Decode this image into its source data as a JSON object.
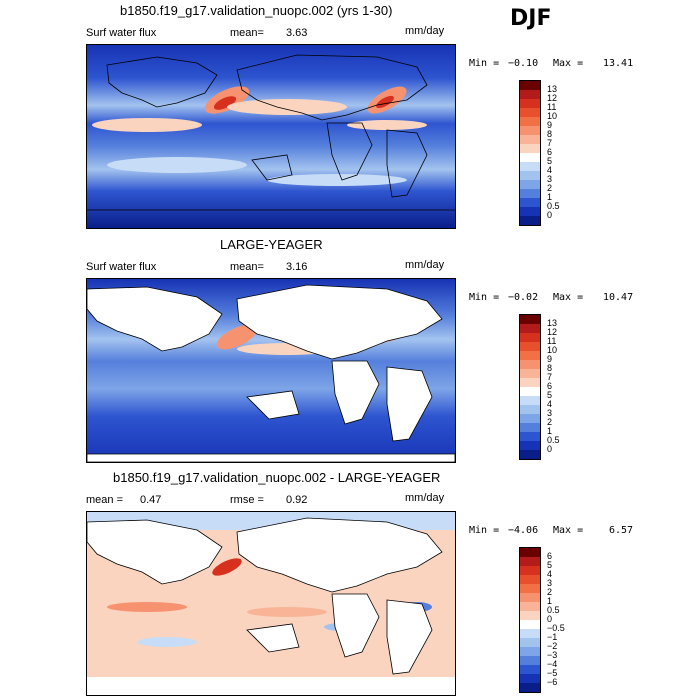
{
  "season": "DJF",
  "panels": [
    {
      "title": "b1850.f19_g17.validation_nuopc.002 (yrs 1-30)",
      "left_label": "Surf water flux",
      "stat_label": "mean=",
      "stat_value": "3.63",
      "units": "mm/day",
      "min_label": "Min =",
      "min_value": "−0.10",
      "max_label": "Max =",
      "max_value": "13.41",
      "type": "ocean",
      "colorbar": {
        "labels": [
          "13",
          "12",
          "11",
          "10",
          "9",
          "8",
          "7",
          "6",
          "5",
          "4",
          "3",
          "2",
          "1",
          "0.5",
          "0"
        ],
        "colors": [
          "#6b0000",
          "#b31b1b",
          "#d6301e",
          "#e8502d",
          "#f27046",
          "#f69270",
          "#f9b497",
          "#fbd4bf",
          "#ffffff",
          "#c7dcf6",
          "#a3c3ef",
          "#7ea5e7",
          "#557fdc",
          "#2e55d0",
          "#1733b5",
          "#0a1e8a"
        ]
      }
    },
    {
      "title": "LARGE-YEAGER",
      "left_label": "Surf water flux",
      "stat_label": "mean=",
      "stat_value": "3.16",
      "units": "mm/day",
      "min_label": "Min =",
      "min_value": "−0.02",
      "max_label": "Max =",
      "max_value": "10.47",
      "type": "ocean",
      "colorbar": {
        "labels": [
          "13",
          "12",
          "11",
          "10",
          "9",
          "8",
          "7",
          "6",
          "5",
          "4",
          "3",
          "2",
          "1",
          "0.5",
          "0"
        ],
        "colors": [
          "#6b0000",
          "#b31b1b",
          "#d6301e",
          "#e8502d",
          "#f27046",
          "#f69270",
          "#f9b497",
          "#fbd4bf",
          "#ffffff",
          "#c7dcf6",
          "#a3c3ef",
          "#7ea5e7",
          "#557fdc",
          "#2e55d0",
          "#1733b5",
          "#0a1e8a"
        ]
      }
    },
    {
      "title": "b1850.f19_g17.validation_nuopc.002 - LARGE-YEAGER",
      "left_label": "mean =",
      "left_value": "0.47",
      "stat_label": "rmse =",
      "stat_value": "0.92",
      "units": "mm/day",
      "min_label": "Min =",
      "min_value": "−4.06",
      "max_label": "Max =",
      "max_value": "6.57",
      "type": "diff",
      "colorbar": {
        "labels": [
          "6",
          "5",
          "4",
          "3",
          "2",
          "1",
          "0.5",
          "0",
          "−0.5",
          "−1",
          "−2",
          "−3",
          "−4",
          "−5",
          "−6"
        ],
        "colors": [
          "#6b0000",
          "#b31b1b",
          "#d6301e",
          "#e8502d",
          "#f27046",
          "#f69270",
          "#f9b497",
          "#fbd4bf",
          "#ffffff",
          "#c7dcf6",
          "#a3c3ef",
          "#7ea5e7",
          "#557fdc",
          "#2e55d0",
          "#1733b5",
          "#0a1e8a"
        ]
      }
    }
  ]
}
